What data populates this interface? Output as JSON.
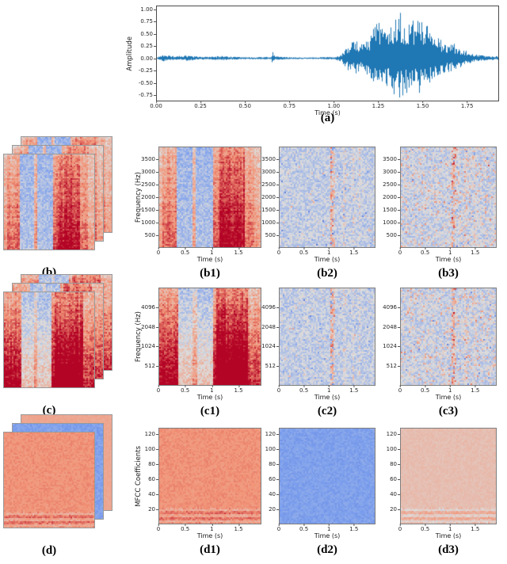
{
  "figure": {
    "description": "Audio waveform with spectrogram, log-frequency spectrogram and MFCC feature panels",
    "accent_color": "#1f77b4",
    "colormap_name": "coolwarm"
  },
  "panels": {
    "a": {
      "label": "(a)",
      "xlabel": "Time (s)",
      "ylabel": "Amplitude"
    },
    "b": {
      "label": "(b)"
    },
    "b1": {
      "label": "(b1)",
      "xlabel": "Time (s)",
      "ylabel": "Frequency (Hz)"
    },
    "b2": {
      "label": "(b2)",
      "xlabel": "Time (s)"
    },
    "b3": {
      "label": "(b3)",
      "xlabel": "Time (s)"
    },
    "c": {
      "label": "(c)"
    },
    "c1": {
      "label": "(c1)",
      "xlabel": "Time (s)",
      "ylabel": "Frequency (Hz)"
    },
    "c2": {
      "label": "(c2)",
      "xlabel": "Time (s)"
    },
    "c3": {
      "label": "(c3)",
      "xlabel": "Time (s)"
    },
    "d": {
      "label": "(d)"
    },
    "d1": {
      "label": "(d1)",
      "xlabel": "Time (s)",
      "ylabel": "MFCC Coefficients"
    },
    "d2": {
      "label": "(d2)",
      "xlabel": "Time (s)"
    },
    "d3": {
      "label": "(d3)",
      "xlabel": "Time (s)"
    }
  },
  "chart_data": {
    "colormap": {
      "name": "coolwarm",
      "anchors": [
        [
          -1,
          [
            59,
            76,
            192
          ]
        ],
        [
          -0.5,
          [
            124,
            159,
            237
          ]
        ],
        [
          0,
          [
            221,
            221,
            221
          ]
        ],
        [
          0.5,
          [
            242,
            149,
            120
          ]
        ],
        [
          1,
          [
            180,
            4,
            38
          ]
        ]
      ]
    },
    "waveform": {
      "type": "line",
      "color": "#1f77b4",
      "x_range": [
        0,
        1.93
      ],
      "y_range": [
        -0.88,
        1.08
      ],
      "envelope": [
        [
          0,
          0.02
        ],
        [
          0.04,
          0.08
        ],
        [
          0.1,
          0.04
        ],
        [
          0.16,
          0.06
        ],
        [
          0.22,
          0.04
        ],
        [
          0.3,
          0.03
        ],
        [
          0.36,
          0.05
        ],
        [
          0.44,
          0.03
        ],
        [
          0.55,
          0.025
        ],
        [
          0.63,
          0.03
        ],
        [
          0.645,
          0.04
        ],
        [
          0.655,
          0.17
        ],
        [
          0.665,
          0.04
        ],
        [
          0.78,
          0.02
        ],
        [
          0.9,
          0.02
        ],
        [
          1.0,
          0.03
        ],
        [
          1.04,
          0.08
        ],
        [
          1.08,
          0.3
        ],
        [
          1.12,
          0.38
        ],
        [
          1.16,
          0.28
        ],
        [
          1.2,
          0.48
        ],
        [
          1.24,
          0.82
        ],
        [
          1.28,
          0.62
        ],
        [
          1.32,
          0.78
        ],
        [
          1.36,
          1.0
        ],
        [
          1.4,
          0.92
        ],
        [
          1.44,
          0.78
        ],
        [
          1.48,
          0.86
        ],
        [
          1.52,
          0.72
        ],
        [
          1.56,
          0.52
        ],
        [
          1.6,
          0.42
        ],
        [
          1.64,
          0.36
        ],
        [
          1.68,
          0.3
        ],
        [
          1.72,
          0.22
        ],
        [
          1.76,
          0.13
        ],
        [
          1.8,
          0.08
        ],
        [
          1.86,
          0.05
        ],
        [
          1.93,
          0.04
        ]
      ]
    },
    "panels": [
      {
        "id": "a",
        "type": "line",
        "x_range": [
          0,
          1.93
        ],
        "y_range": [
          -0.88,
          1.08
        ],
        "xticks": [
          {
            "v": 0,
            "label": "0.00"
          },
          {
            "v": 0.25,
            "label": "0.25"
          },
          {
            "v": 0.5,
            "label": "0.50"
          },
          {
            "v": 0.75,
            "label": "0.75"
          },
          {
            "v": 1,
            "label": "1.00"
          },
          {
            "v": 1.25,
            "label": "1.25"
          },
          {
            "v": 1.5,
            "label": "1.50"
          },
          {
            "v": 1.75,
            "label": "1.75"
          }
        ],
        "yticks": [
          {
            "v": 1,
            "label": "1.00"
          },
          {
            "v": 0.75,
            "label": "0.75"
          },
          {
            "v": 0.5,
            "label": "0.50"
          },
          {
            "v": 0.25,
            "label": "0.25"
          },
          {
            "v": 0,
            "label": "0.00"
          },
          {
            "v": -0.25,
            "label": "-0.25"
          },
          {
            "v": -0.5,
            "label": "-0.50"
          },
          {
            "v": -0.75,
            "label": "-0.75"
          }
        ]
      },
      {
        "id": "b1",
        "type": "heatmap",
        "x_range": [
          0,
          1.93
        ],
        "y_range": [
          0,
          4000
        ],
        "xticks": [
          {
            "v": 0,
            "label": "0"
          },
          {
            "v": 0.5,
            "label": "0.5"
          },
          {
            "v": 1,
            "label": "1"
          },
          {
            "v": 1.5,
            "label": "1.5"
          }
        ],
        "yticks": [
          {
            "v": 3500,
            "label": "3500"
          },
          {
            "v": 3000,
            "label": "3000"
          },
          {
            "v": 2500,
            "label": "2500"
          },
          {
            "v": 2000,
            "label": "2000"
          },
          {
            "v": 1500,
            "label": "1500"
          },
          {
            "v": 1000,
            "label": "1000"
          },
          {
            "v": 500,
            "label": "500"
          }
        ]
      },
      {
        "id": "b2",
        "type": "heatmap",
        "x_range": [
          0,
          1.93
        ],
        "y_range": [
          0,
          4000
        ],
        "xticks": [
          {
            "v": 0,
            "label": "0"
          },
          {
            "v": 0.5,
            "label": "0.5"
          },
          {
            "v": 1,
            "label": "1"
          },
          {
            "v": 1.5,
            "label": "1.5"
          }
        ],
        "yticks": [
          {
            "v": 3500,
            "label": "3500"
          },
          {
            "v": 3000,
            "label": "3000"
          },
          {
            "v": 2500,
            "label": "2500"
          },
          {
            "v": 2000,
            "label": "2000"
          },
          {
            "v": 1500,
            "label": "1500"
          },
          {
            "v": 1000,
            "label": "1000"
          },
          {
            "v": 500,
            "label": "500"
          }
        ]
      },
      {
        "id": "b3",
        "type": "heatmap",
        "x_range": [
          0,
          1.93
        ],
        "y_range": [
          0,
          4000
        ],
        "xticks": [
          {
            "v": 0,
            "label": "0"
          },
          {
            "v": 0.5,
            "label": "0.5"
          },
          {
            "v": 1,
            "label": "1"
          },
          {
            "v": 1.5,
            "label": "1.5"
          }
        ],
        "yticks": [
          {
            "v": 3500,
            "label": "3500"
          },
          {
            "v": 3000,
            "label": "3000"
          },
          {
            "v": 2500,
            "label": "2500"
          },
          {
            "v": 2000,
            "label": "2000"
          },
          {
            "v": 1500,
            "label": "1500"
          },
          {
            "v": 1000,
            "label": "1000"
          },
          {
            "v": 500,
            "label": "500"
          }
        ]
      },
      {
        "id": "c1",
        "type": "heatmap",
        "x_range": [
          0,
          1.93
        ],
        "y_scale": "log",
        "y_range": [
          256,
          8192
        ],
        "xticks": [
          {
            "v": 0,
            "label": "0"
          },
          {
            "v": 0.5,
            "label": "0.5"
          },
          {
            "v": 1,
            "label": "1"
          },
          {
            "v": 1.5,
            "label": "1.5"
          }
        ],
        "yticks": [
          {
            "v": 4096,
            "label": "4096"
          },
          {
            "v": 2048,
            "label": "2048"
          },
          {
            "v": 1024,
            "label": "1024"
          },
          {
            "v": 512,
            "label": "512"
          }
        ]
      },
      {
        "id": "c2",
        "type": "heatmap",
        "x_range": [
          0,
          1.93
        ],
        "y_scale": "log",
        "y_range": [
          256,
          8192
        ],
        "xticks": [
          {
            "v": 0,
            "label": "0"
          },
          {
            "v": 0.5,
            "label": "0.5"
          },
          {
            "v": 1,
            "label": "1"
          },
          {
            "v": 1.5,
            "label": "1.5"
          }
        ],
        "yticks": [
          {
            "v": 4096,
            "label": "4096"
          },
          {
            "v": 2048,
            "label": "2048"
          },
          {
            "v": 1024,
            "label": "1024"
          },
          {
            "v": 512,
            "label": "512"
          }
        ]
      },
      {
        "id": "c3",
        "type": "heatmap",
        "x_range": [
          0,
          1.93
        ],
        "y_scale": "log",
        "y_range": [
          256,
          8192
        ],
        "xticks": [
          {
            "v": 0,
            "label": "0"
          },
          {
            "v": 0.5,
            "label": "0.5"
          },
          {
            "v": 1,
            "label": "1"
          },
          {
            "v": 1.5,
            "label": "1.5"
          }
        ],
        "yticks": [
          {
            "v": 4096,
            "label": "4096"
          },
          {
            "v": 2048,
            "label": "2048"
          },
          {
            "v": 1024,
            "label": "1024"
          },
          {
            "v": 512,
            "label": "512"
          }
        ]
      },
      {
        "id": "d1",
        "type": "heatmap",
        "x_range": [
          0,
          1.93
        ],
        "y_range": [
          0,
          128
        ],
        "xticks": [
          {
            "v": 0,
            "label": "0"
          },
          {
            "v": 0.5,
            "label": "0.5"
          },
          {
            "v": 1,
            "label": "1"
          },
          {
            "v": 1.5,
            "label": "1.5"
          }
        ],
        "yticks": [
          {
            "v": 120,
            "label": "120"
          },
          {
            "v": 100,
            "label": "100"
          },
          {
            "v": 80,
            "label": "80"
          },
          {
            "v": 60,
            "label": "60"
          },
          {
            "v": 40,
            "label": "40"
          },
          {
            "v": 20,
            "label": "20"
          }
        ]
      },
      {
        "id": "d2",
        "type": "heatmap",
        "x_range": [
          0,
          1.93
        ],
        "y_range": [
          0,
          128
        ],
        "xticks": [
          {
            "v": 0,
            "label": "0"
          },
          {
            "v": 0.5,
            "label": "0.5"
          },
          {
            "v": 1,
            "label": "1"
          },
          {
            "v": 1.5,
            "label": "1.5"
          }
        ],
        "yticks": [
          {
            "v": 120,
            "label": "120"
          },
          {
            "v": 100,
            "label": "100"
          },
          {
            "v": 80,
            "label": "80"
          },
          {
            "v": 60,
            "label": "60"
          },
          {
            "v": 40,
            "label": "40"
          },
          {
            "v": 20,
            "label": "20"
          }
        ]
      },
      {
        "id": "d3",
        "type": "heatmap",
        "x_range": [
          0,
          1.93
        ],
        "y_range": [
          0,
          128
        ],
        "xticks": [
          {
            "v": 0,
            "label": "0"
          },
          {
            "v": 0.5,
            "label": "0.5"
          },
          {
            "v": 1,
            "label": "1"
          },
          {
            "v": 1.5,
            "label": "1.5"
          }
        ],
        "yticks": [
          {
            "v": 120,
            "label": "120"
          },
          {
            "v": 100,
            "label": "100"
          },
          {
            "v": 80,
            "label": "80"
          },
          {
            "v": 60,
            "label": "60"
          },
          {
            "v": 40,
            "label": "40"
          },
          {
            "v": 20,
            "label": "20"
          }
        ]
      }
    ],
    "styles": {
      "wave": {
        "kind": "wave"
      },
      "spec_b": {
        "kind": "spec",
        "noise": 0.35,
        "depth": 0.5,
        "warm_bottom": 0.1,
        "segments": [
          [
            0,
            0.05,
            0.3
          ],
          [
            0.05,
            0.32,
            0.55
          ],
          [
            0.32,
            0.62,
            -0.32
          ],
          [
            0.62,
            0.68,
            0.35
          ],
          [
            0.68,
            1.02,
            -0.32
          ],
          [
            1.02,
            1.12,
            0.6
          ],
          [
            1.12,
            1.62,
            0.85
          ],
          [
            1.62,
            1.78,
            0.5
          ],
          [
            1.78,
            1.94,
            0.28
          ]
        ]
      },
      "spec_c": {
        "kind": "spec",
        "noise": 0.4,
        "depth": 0.5,
        "warm_bottom": 0.45,
        "segments": [
          [
            0,
            0.35,
            0.6
          ],
          [
            0.35,
            0.62,
            -0.22
          ],
          [
            0.62,
            0.7,
            0.05
          ],
          [
            0.7,
            1.0,
            -0.25
          ],
          [
            1.0,
            1.08,
            0.6
          ],
          [
            1.08,
            1.68,
            0.9
          ],
          [
            1.68,
            1.94,
            0.38
          ]
        ]
      },
      "residual_b": {
        "kind": "residual",
        "base": -0.13,
        "noise": 0.19,
        "streaks": [
          [
            1.04,
            0.025,
            0.6
          ],
          [
            1.1,
            0.02,
            0.35
          ],
          [
            1.3,
            0.02,
            0.22
          ],
          [
            1.48,
            0.025,
            0.2
          ],
          [
            1.6,
            0.02,
            0.15
          ]
        ]
      },
      "residual_warm": {
        "kind": "residual",
        "base": -0.1,
        "noise": 0.21,
        "warm": 0.1,
        "streaks": [
          [
            1.04,
            0.025,
            0.55
          ],
          [
            1.1,
            0.02,
            0.3
          ],
          [
            1.3,
            0.02,
            0.2
          ],
          [
            1.5,
            0.03,
            0.18
          ]
        ]
      },
      "mfcc_main": {
        "kind": "mfcc",
        "base": 0.5,
        "noise": 0.07,
        "stripes": 1
      },
      "mfcc_blue": {
        "kind": "mfcc",
        "base": -0.48,
        "noise": 0.08
      },
      "mfcc_pale": {
        "kind": "mfcc",
        "base": 0.22,
        "noise": 0.05,
        "stripes": 1
      },
      "flat_salmon": {
        "kind": "flat",
        "base": 0.38,
        "noise": 0.04
      }
    }
  }
}
